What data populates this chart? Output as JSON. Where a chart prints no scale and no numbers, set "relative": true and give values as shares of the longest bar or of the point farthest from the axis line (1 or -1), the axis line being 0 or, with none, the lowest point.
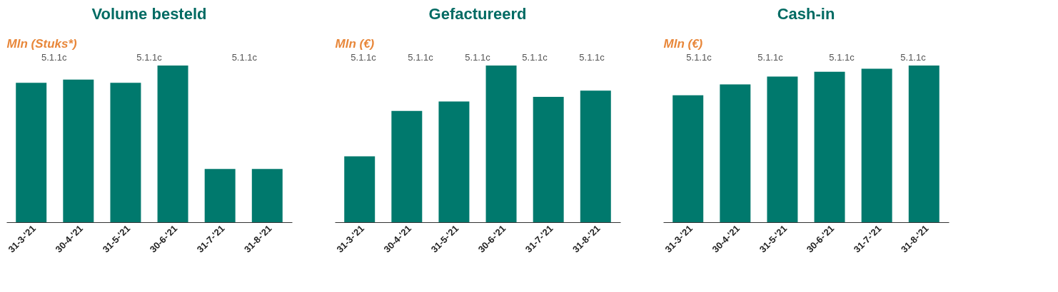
{
  "chart_data": [
    {
      "type": "bar",
      "title": "Volume besteld",
      "ylabel": "Mln (Stuks*)",
      "relative": true,
      "categories": [
        "31-3-'21",
        "30-4-'21",
        "31-5-'21",
        "30-6-'21",
        "31-7-'21",
        "31-8-'21"
      ],
      "values": [
        0.89,
        0.91,
        0.89,
        1,
        0.34,
        0.34
      ],
      "color": "#00796d",
      "grid": false,
      "annotations": [
        "5.1.1c",
        "5.1.1c",
        "5.1.1c"
      ]
    },
    {
      "type": "bar",
      "title": "Gefactureerd",
      "ylabel": "Mln (€)",
      "relative": true,
      "categories": [
        "31-3-'21",
        "30-4-'21",
        "31-5-'21",
        "30-6-'21",
        "31-7-'21",
        "31-8-'21"
      ],
      "values": [
        0.42,
        0.71,
        0.77,
        1,
        0.8,
        0.84
      ],
      "color": "#00796d",
      "grid": false,
      "annotations": [
        "5.1.1c",
        "5.1.1c",
        "5.1.1c",
        "5.1.1c",
        "5.1.1c"
      ]
    },
    {
      "type": "bar",
      "title": "Cash-in",
      "ylabel": "Mln (€)",
      "relative": true,
      "categories": [
        "31-3-'21",
        "30-4-'21",
        "31-5-'21",
        "30-6-'21",
        "31-7-'21",
        "31-8-'21"
      ],
      "values": [
        0.81,
        0.88,
        0.93,
        0.96,
        0.98,
        1
      ],
      "color": "#00796d",
      "grid": false,
      "annotations": [
        "5.1.1c",
        "5.1.1c",
        "5.1.1c",
        "5.1.1c"
      ]
    }
  ]
}
